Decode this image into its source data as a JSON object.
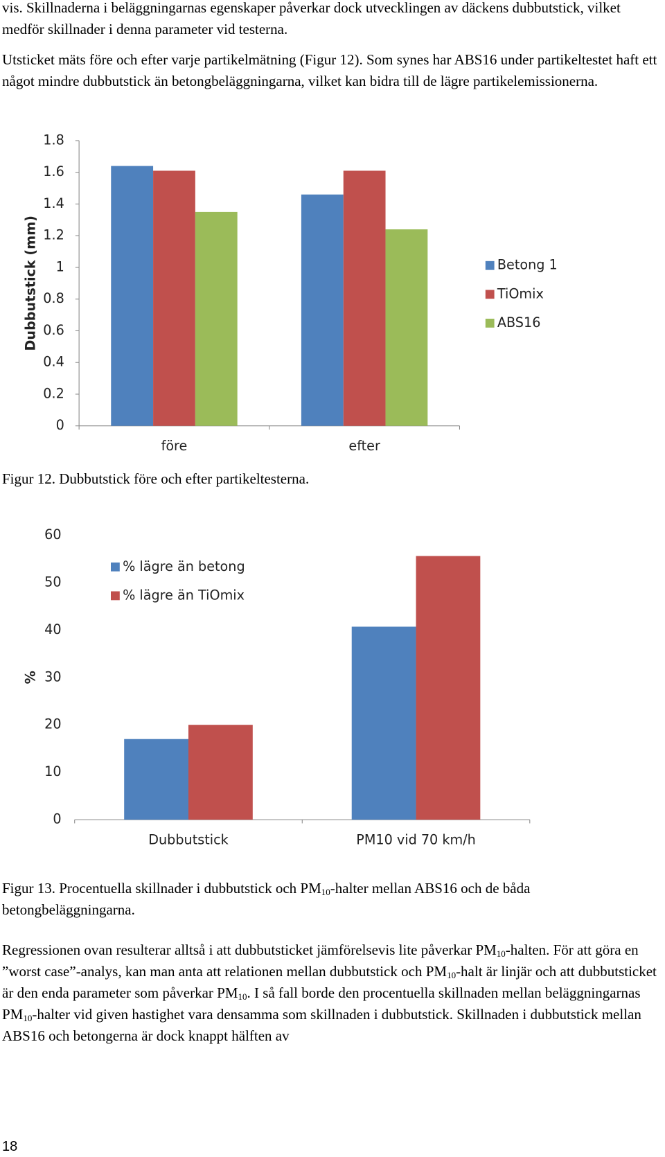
{
  "paragraphs": [
    [
      "vis. Skillnaderna i beläggningarnas egenskaper påverkar dock utvecklingen av däckens dubbutstick, vilket medför skillnader i denna parameter vid testerna."
    ],
    [
      "Utsticket mäts före och efter varje partikelmätning (Figur 12). Som synes har ABS16 under partikeltestet haft ett något mindre dubbutstick än betongbeläggningarna, vilket kan bidra till de lägre partikelemissionerna."
    ],
    [
      "Regressionen ovan resulterar alltså i att dubbutsticket jämförelsevis lite påverkar PM",
      {
        "sub": "10"
      },
      "-halten. För att göra en ”worst case”-analys, kan man anta att relationen mellan dubbutstick och PM",
      {
        "sub": "10"
      },
      "-halt är linjär och att dubbutsticket är den enda parameter som påverkar PM",
      {
        "sub": "10"
      },
      ". I så fall borde den procentuella skillnaden mellan beläggningarnas PM",
      {
        "sub": "10"
      },
      "-halter vid given hastighet vara densamma som skillnaden i dubbutstick. Skillnaden i dubbutstick mellan ABS16 och betongerna är dock knappt hälften av"
    ]
  ],
  "captions": [
    [
      "Figur 12. Dubbutstick före och efter partikeltesterna."
    ],
    [
      "Figur 13. Procentuella skillnader i dubbutstick och PM",
      {
        "sub": "10"
      },
      "-halter mellan ABS16 och de båda betongbeläggningarna."
    ]
  ],
  "page_number": "18",
  "chart_data": [
    {
      "type": "bar",
      "y_label": "Dubbutstick (mm)",
      "categories": [
        "före",
        "efter"
      ],
      "series": [
        {
          "name": "Betong 1",
          "color": "#4f81bd",
          "values": [
            1.64,
            1.46
          ]
        },
        {
          "name": "TiOmix",
          "color": "#c0504d",
          "values": [
            1.61,
            1.61
          ]
        },
        {
          "name": "ABS16",
          "color": "#9bbb59",
          "values": [
            1.35,
            1.24
          ]
        }
      ],
      "ylim": [
        0,
        1.8
      ],
      "yticks": [
        0,
        0.2,
        0.4,
        0.6,
        0.8,
        1,
        1.2,
        1.4,
        1.6,
        1.8
      ],
      "grid": false,
      "y_axis_line": true,
      "legend": "right"
    },
    {
      "type": "bar",
      "y_label": "%",
      "categories": [
        "Dubbutstick",
        "PM10 vid 70 km/h"
      ],
      "series": [
        {
          "name": "% lägre än betong",
          "color": "#4f81bd",
          "values": [
            17,
            40.7
          ]
        },
        {
          "name": "% lägre än TiOmix",
          "color": "#c0504d",
          "values": [
            20,
            55.6
          ]
        }
      ],
      "ylim": [
        0,
        60
      ],
      "yticks": [
        0,
        10,
        20,
        30,
        40,
        50,
        60
      ],
      "grid": false,
      "y_axis_line": false,
      "legend": "top-left"
    }
  ]
}
